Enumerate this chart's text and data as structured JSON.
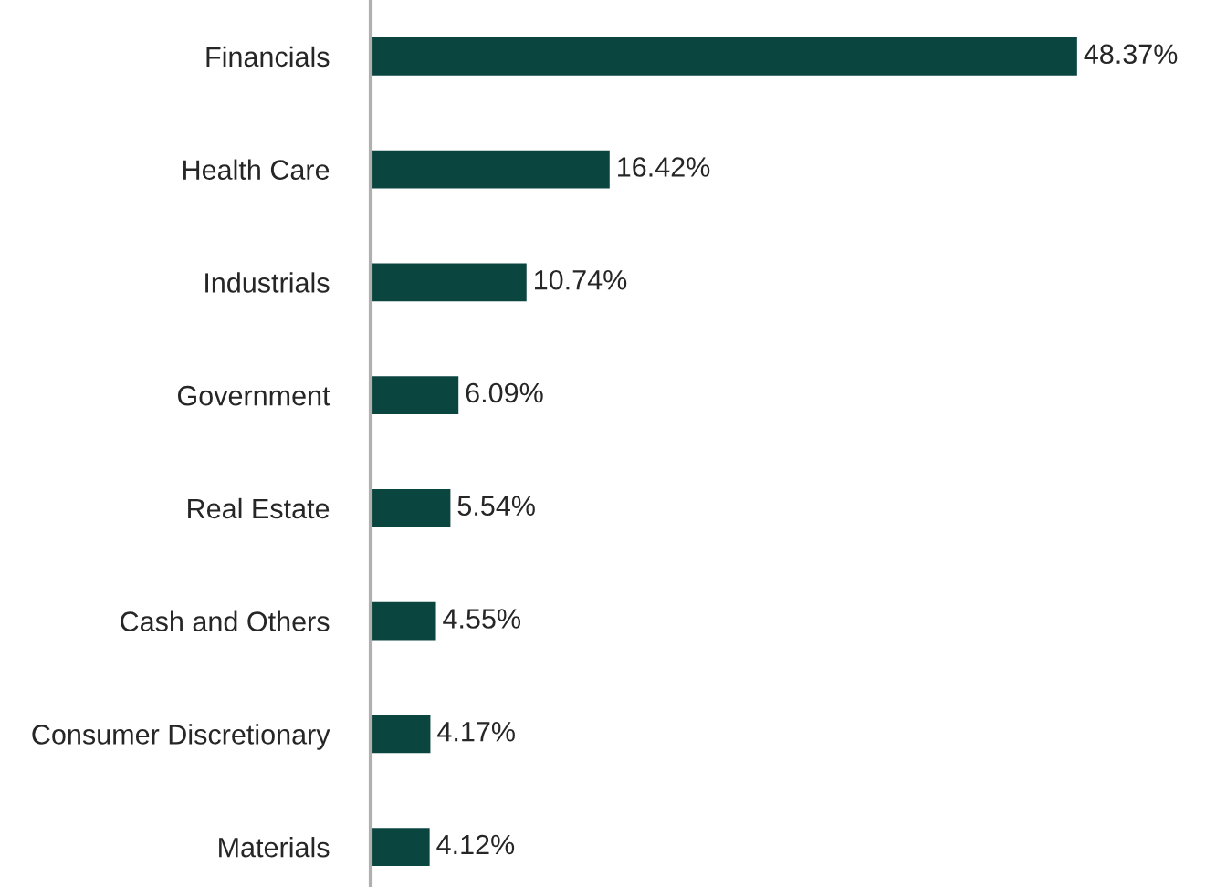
{
  "chart_data": {
    "type": "bar",
    "orientation": "horizontal",
    "categories": [
      "Financials",
      "Health Care",
      "Industrials",
      "Government",
      "Real Estate",
      "Cash and Others",
      "Consumer Discretionary",
      "Materials"
    ],
    "values": [
      48.37,
      16.42,
      10.74,
      6.09,
      5.54,
      4.55,
      4.17,
      4.12
    ],
    "value_labels": [
      "48.37%",
      "16.42%",
      "10.74%",
      "6.09%",
      "5.54%",
      "4.55%",
      "4.17%",
      "4.12%"
    ],
    "color": "#0b4540",
    "tick_labels": "y",
    "grid": false,
    "legend": false
  }
}
